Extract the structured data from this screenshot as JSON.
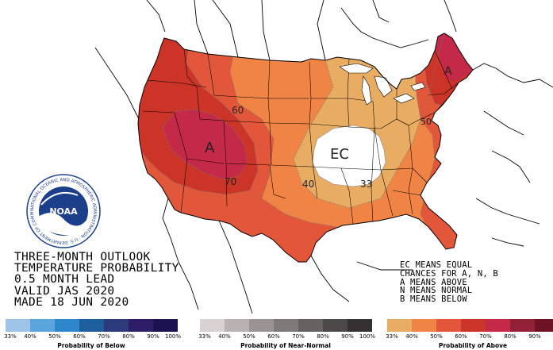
{
  "title_lines": [
    "THREE-MONTH OUTLOOK",
    "TEMPERATURE PROBABILITY",
    "0.5 MONTH LEAD",
    "VALID JAS 2020",
    "MADE 18 JUN 2020"
  ],
  "notes_lines": [
    "EC MEANS EQUAL",
    "CHANCES FOR A, N, B",
    "A MEANS ABOVE",
    "N MEANS NORMAL",
    "B MEANS BELOW"
  ],
  "map_labels": {
    "above_west": "A",
    "above_northeast": "A",
    "equal_chances": "EC",
    "contour_60": "60",
    "contour_70": "70",
    "contour_40": "40",
    "contour_33": "33",
    "contour_50": "50"
  },
  "logo": {
    "text": "NOAA",
    "ring_text": "NATIONAL OCEANIC AND ATMOSPHERIC ADMINISTRATION · U.S. DEPARTMENT OF COMMERCE"
  },
  "scales": [
    {
      "title": "Probability of Below",
      "ticks": [
        "33%",
        "40%",
        "50%",
        "60%",
        "70%",
        "80%",
        "90%",
        "100%"
      ],
      "colors": [
        "#9dc3e6",
        "#5aa5dc",
        "#2e86cc",
        "#1c5f9c",
        "#2e3b7a",
        "#2b1d66",
        "#1c1252"
      ]
    },
    {
      "title": "Probability of Near-Normal",
      "ticks": [
        "33%",
        "40%",
        "50%",
        "60%",
        "70%",
        "80%",
        "90%",
        "100%"
      ],
      "colors": [
        "#d8d2d0",
        "#b8b2b0",
        "#999392",
        "#7f7a7a",
        "#666262",
        "#4c4949",
        "#333131"
      ]
    },
    {
      "title": "Probability of Above",
      "ticks": [
        "33%",
        "40%",
        "50%",
        "60%",
        "70%",
        "80%",
        "90%"
      ],
      "colors": [
        "#e8ad62",
        "#f08444",
        "#e2573a",
        "#cc3427",
        "#c42a48",
        "#922038",
        "#6e1226"
      ]
    }
  ]
}
